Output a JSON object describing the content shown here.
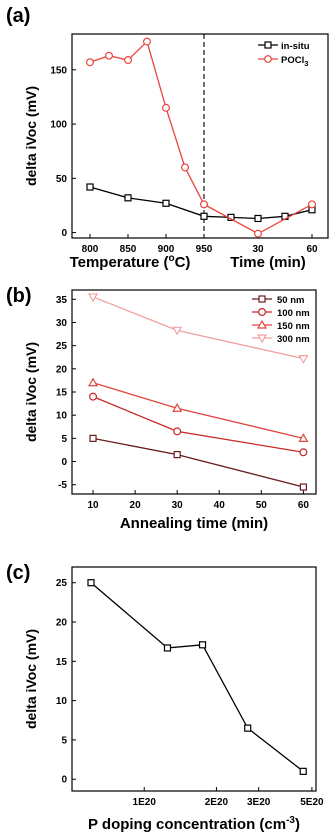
{
  "chart_data": [
    {
      "panel": "(a)",
      "type": "line",
      "ylabel": "delta iVoc (mV)",
      "xlabel_left": "Temperature (°C)",
      "xlabel_right": "Time (min)",
      "ylim": [
        -5,
        183
      ],
      "yticks": [
        "0",
        "50",
        "100",
        "150"
      ],
      "xticks": [
        "800",
        "850",
        "900",
        "950",
        "30",
        "60"
      ],
      "legend_position": "top-right",
      "series": [
        {
          "name": "in-situ",
          "color": "#000000",
          "marker": "square",
          "temperature": [
            800,
            850,
            900,
            950
          ],
          "temperature_values": [
            42,
            32,
            27,
            15
          ],
          "time": [
            15,
            30,
            45,
            60
          ],
          "time_values": [
            14,
            13,
            15,
            21
          ]
        },
        {
          "name": "POCl",
          "name_sub": "3",
          "color": "#e8453c",
          "marker": "circle",
          "temperature": [
            800,
            825,
            850,
            875,
            900,
            925,
            950
          ],
          "temperature_values": [
            157,
            163,
            159,
            176,
            115,
            60,
            26
          ],
          "time": [
            30,
            60
          ],
          "time_values": [
            -1,
            26
          ]
        }
      ],
      "annotations": [
        "dashed vertical separator at 950 °C"
      ]
    },
    {
      "panel": "(b)",
      "type": "line",
      "xlabel": "Annealing time (min)",
      "ylabel": "delta iVoc (mV)",
      "xlim": [
        5,
        63
      ],
      "ylim": [
        -7,
        37
      ],
      "xticks": [
        10,
        20,
        30,
        40,
        50,
        60
      ],
      "yticks": [
        -5,
        0,
        5,
        10,
        15,
        20,
        25,
        30,
        35
      ],
      "legend_position": "top-right",
      "series": [
        {
          "name": "50 nm",
          "color": "#6b1a1a",
          "marker": "square",
          "x": [
            10,
            30,
            60
          ],
          "values": [
            5,
            1.5,
            -5.5
          ]
        },
        {
          "name": "100 nm",
          "color": "#c62828",
          "marker": "circle",
          "x": [
            10,
            30,
            60
          ],
          "values": [
            14,
            6.5,
            2
          ]
        },
        {
          "name": "150 nm",
          "color": "#e0453f",
          "marker": "triangle-up",
          "x": [
            10,
            30,
            60
          ],
          "values": [
            17,
            11.5,
            5
          ]
        },
        {
          "name": "300 nm",
          "color": "#f2a0a0",
          "marker": "triangle-down",
          "x": [
            10,
            30,
            60
          ],
          "values": [
            35.5,
            28.3,
            22.2
          ]
        }
      ]
    },
    {
      "panel": "(c)",
      "type": "line",
      "xlabel": "P doping concentration (cm",
      "xlabel_sup": "-3",
      "xlabel_end": ")",
      "ylabel": "delta iVoc (mV)",
      "xscale": "log",
      "xlim": [
        5e+19,
        5.2e+20
      ],
      "ylim": [
        -1.5,
        27
      ],
      "xticks": [
        {
          "value": 1e+20,
          "label": "1E20"
        },
        {
          "value": 2e+20,
          "label": "2E20"
        },
        {
          "value": 3e+20,
          "label": "3E20"
        },
        {
          "value": 5e+20,
          "label": "5E20"
        }
      ],
      "yticks": [
        0,
        5,
        10,
        15,
        20,
        25
      ],
      "series": [
        {
          "color": "#000000",
          "marker": "square",
          "x": [
            6e+19,
            1.25e+20,
            1.75e+20,
            2.7e+20,
            4.6e+20
          ],
          "values": [
            25,
            16.7,
            17.1,
            6.5,
            1
          ]
        }
      ]
    }
  ]
}
